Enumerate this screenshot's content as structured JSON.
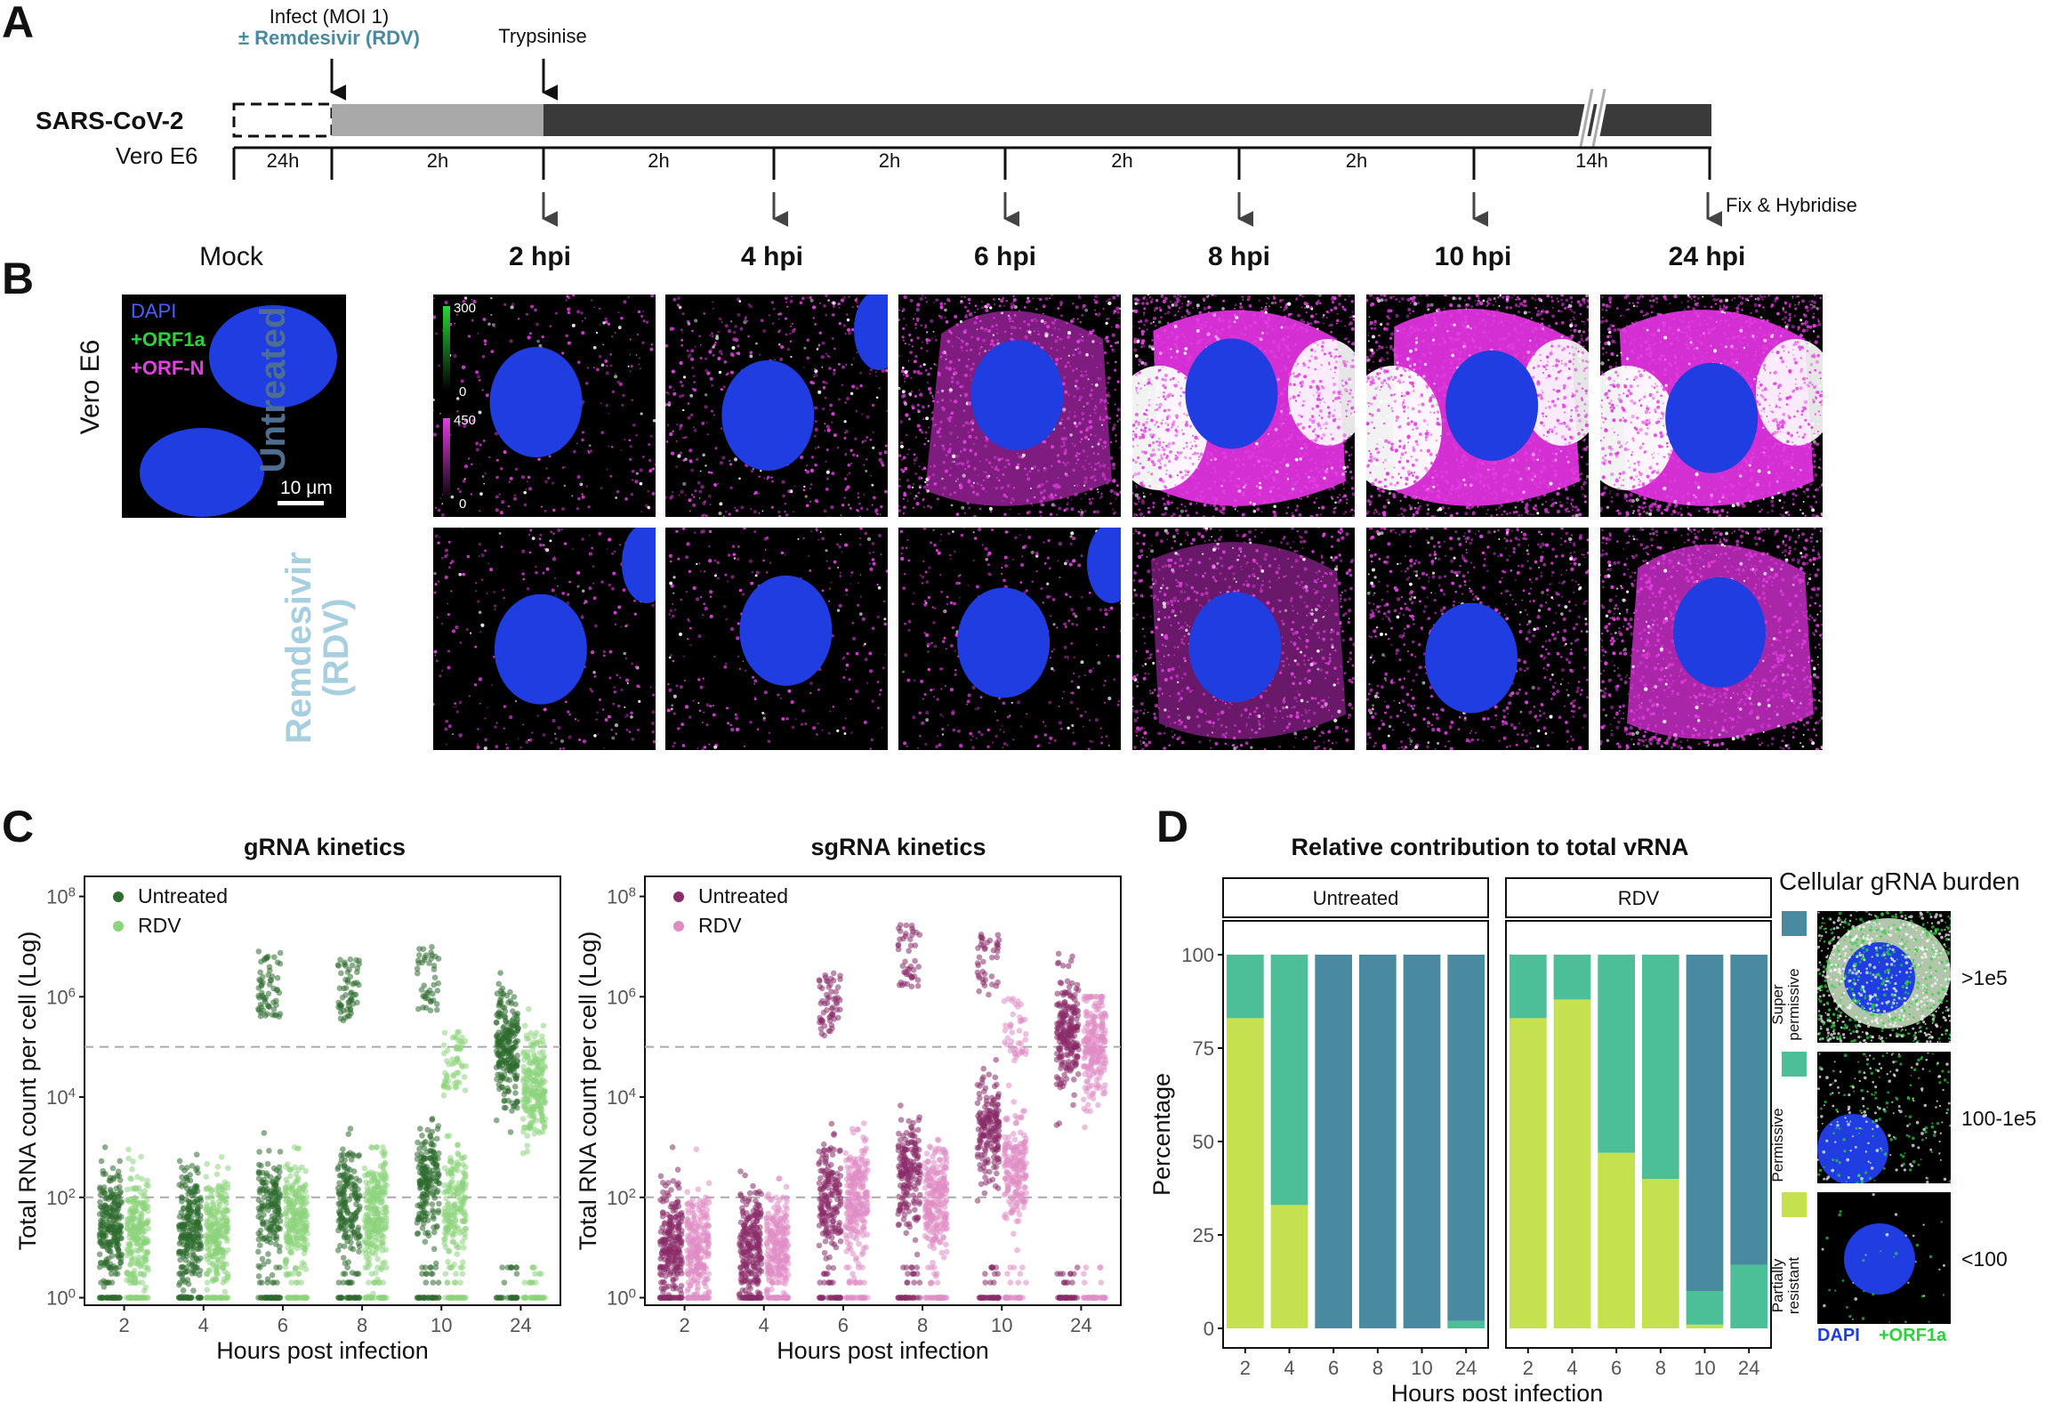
{
  "panels": {
    "A": "A",
    "B": "B",
    "C": "C",
    "D": "D"
  },
  "timeline": {
    "virus": "SARS-CoV-2",
    "cell_line": "Vero E6",
    "infect_label": "Infect (MOI 1)",
    "remdesivir_label": "± Remdesivir (RDV)",
    "trypsinise_label": "Trypsinise",
    "fix_label": "Fix & Hybridise",
    "segments": [
      "24h",
      "2h",
      "2h",
      "2h",
      "2h",
      "2h",
      "14h"
    ],
    "colors": {
      "light_bar": "#a9a9a9",
      "dark_bar": "#3a3a3a",
      "accent": "#4a8aa0"
    }
  },
  "microscopy": {
    "mock_label": "Mock",
    "cell_line": "Vero E6",
    "legend": {
      "dapi": "DAPI",
      "orf1a": "+ORF1a",
      "orfn": "+ORF-N"
    },
    "scale_bar": "10 μm",
    "green_scale": {
      "max": "300",
      "min": "0"
    },
    "magenta_scale": {
      "max": "450",
      "min": "0"
    },
    "rows": [
      "Untreated",
      "Remdesivir (RDV)"
    ],
    "timepoints": [
      "2 hpi",
      "4 hpi",
      "6 hpi",
      "8 hpi",
      "10 hpi",
      "24 hpi"
    ],
    "colors": {
      "untreated": "#4d6e91",
      "rdv": "#a8cfe0",
      "dapi": "#1f3de0",
      "magenta": "#e23ee0",
      "green": "#2bd33b"
    }
  },
  "chart_data": [
    {
      "type": "scatter",
      "title": "gRNA kinetics",
      "xlabel": "Hours post infection",
      "ylabel": "Total RNA count per cell (Log)",
      "categories": [
        "2",
        "4",
        "6",
        "8",
        "10",
        "24"
      ],
      "y_scale": "log",
      "y_ticks": [
        "10^0",
        "10^2",
        "10^4",
        "10^6",
        "10^8"
      ],
      "hlines": [
        100,
        100000
      ],
      "legend_position": "top-left",
      "series": [
        {
          "name": "Untreated",
          "color": "#2e6b2e",
          "median": [
            30,
            20,
            70,
            80,
            200,
            80000
          ],
          "upper": [
            1000,
            3000,
            8000000,
            6000000,
            10000000,
            6000000
          ]
        },
        {
          "name": "RDV",
          "color": "#8cd47c",
          "median": [
            25,
            20,
            40,
            50,
            80,
            15000
          ],
          "upper": [
            1000,
            1000,
            1000,
            1000,
            200000,
            1000000
          ]
        }
      ]
    },
    {
      "type": "scatter",
      "title": "sgRNA kinetics",
      "xlabel": "Hours post infection",
      "ylabel": "Total RNA count per cell (Log)",
      "categories": [
        "2",
        "4",
        "6",
        "8",
        "10",
        "24"
      ],
      "y_scale": "log",
      "y_ticks": [
        "10^0",
        "10^2",
        "10^4",
        "10^6",
        "10^8"
      ],
      "hlines": [
        100,
        100000
      ],
      "legend_position": "top-left",
      "series": [
        {
          "name": "Untreated",
          "color": "#8b2c6a",
          "median": [
            10,
            10,
            100,
            300,
            2000,
            200000
          ],
          "upper": [
            1000,
            3000,
            3000000,
            30000000,
            20000000,
            10000000
          ]
        },
        {
          "name": "RDV",
          "color": "#e08cc4",
          "median": [
            10,
            10,
            100,
            100,
            300,
            100000
          ],
          "upper": [
            1000,
            1000,
            3000,
            30000,
            1000000,
            1000000
          ]
        }
      ]
    },
    {
      "type": "bar",
      "stacked": true,
      "title": "Relative contribution to total vRNA",
      "xlabel": "Hours post infection",
      "ylabel": "Percentage",
      "ylim": [
        0,
        100
      ],
      "y_ticks": [
        "0",
        "25",
        "50",
        "75",
        "100"
      ],
      "categories": [
        "2",
        "4",
        "6",
        "8",
        "10",
        "24"
      ],
      "facets": [
        {
          "name": "Untreated",
          "series": [
            {
              "name": "Partially resistant",
              "color": "#c6e14f",
              "values": [
                83,
                33,
                0,
                0,
                0,
                0
              ]
            },
            {
              "name": "Permissive",
              "color": "#4cbf98",
              "values": [
                17,
                67,
                0,
                0,
                0,
                2
              ]
            },
            {
              "name": "Super permissive",
              "color": "#4a8aa0",
              "values": [
                0,
                0,
                100,
                100,
                100,
                98
              ]
            }
          ]
        },
        {
          "name": "RDV",
          "series": [
            {
              "name": "Partially resistant",
              "color": "#c6e14f",
              "values": [
                83,
                88,
                47,
                40,
                1,
                0
              ]
            },
            {
              "name": "Permissive",
              "color": "#4cbf98",
              "values": [
                17,
                12,
                53,
                60,
                9,
                17
              ]
            },
            {
              "name": "Super permissive",
              "color": "#4a8aa0",
              "values": [
                0,
                0,
                0,
                0,
                90,
                83
              ]
            }
          ]
        }
      ]
    }
  ],
  "burden_legend": {
    "title": "Cellular gRNA burden",
    "items": [
      {
        "label": "Super permissive",
        "range": ">1e5",
        "color": "#4a8aa0"
      },
      {
        "label": "Permissive",
        "range": "100-1e5",
        "color": "#4cbf98"
      },
      {
        "label": "Partially resistant",
        "range": "<100",
        "color": "#c6e14f"
      }
    ],
    "footer_dapi": "DAPI",
    "footer_orf1a": "+ORF1a"
  }
}
